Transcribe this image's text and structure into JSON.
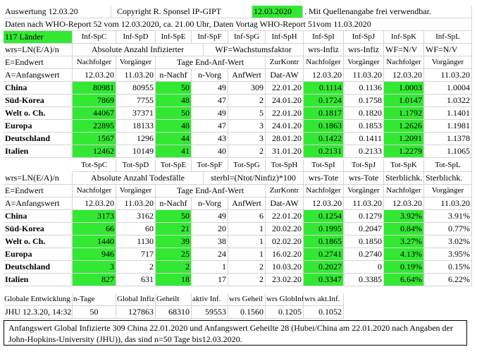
{
  "header": {
    "title": "Auswertung 12.03.20",
    "copyright_prefix": "Copyright R. Sponsel IP-GIPT",
    "copyright_date": "12.03.2020",
    "copyright_suffix": ". Mit Quellenangabe frei verwendbar.",
    "source": "Daten nach WHO-Report 52 vom 12.03.2020, ca. 21.00 Uhr, Daten Vortag WHO-Report 51vom 11.03.2020",
    "countries": "117  Länder"
  },
  "table1": {
    "col_codes": [
      "Inf-SpC",
      "Inf-SpD",
      "Inf-SpE",
      "Inf-SpF",
      "Inf-SpG",
      "Inf-SpH",
      "Inf-SpI",
      "Inf-SpJ",
      "Inf-SpK",
      "Inf-SpL"
    ],
    "formula": "wrs=LN(E/A)/n",
    "title_abs": "Absolute Anzahl Infizierter",
    "title_wf": "WF=Wachstumsfaktor",
    "wrs_infiz": "wrs-Infiz",
    "wrs_infiz2": "wrs-Infiz",
    "wf_label1": "WF=N/V",
    "wf_label2": "WF=N/V",
    "e_label": "E=Endwert",
    "nachfolger": "Nachfolger",
    "vorgaenger": "Vorgänger",
    "tage_label": "Tage End-Anf-Wert",
    "zurkontr": "ZurKontr",
    "nachfolger2": "Nachfolger",
    "vorgaenger2": "Vorgänger",
    "nachfolger3": "Nachfolger",
    "vorgaenger3": "Vorgänger",
    "a_label": "A=Anfangswert",
    "date1": "12.03.20",
    "date2": "11.03.20",
    "n_nachf": "n-Nachf",
    "n_vorg": "n-Vorg",
    "anfwert": "AnfWert",
    "dat_aw": "Dat-AW",
    "date3": "12.03.20",
    "date4": "11.03.20",
    "date5": "12.03.20",
    "date6": "11.03.20",
    "rows": [
      {
        "country": "China",
        "nach": "80981",
        "vor": "80955",
        "nn": "50",
        "nv": "49",
        "aw": "309",
        "dat": "22.01.20",
        "w1": "0.1114",
        "w2": "0.1136",
        "k": "1.0003",
        "l": "1.0004"
      },
      {
        "country": "Süd-Korea",
        "nach": "7869",
        "vor": "7755",
        "nn": "48",
        "nv": "47",
        "aw": "2",
        "dat": "24.01.20",
        "w1": "0.1724",
        "w2": "0.1758",
        "k": "1.0147",
        "l": "1.0322"
      },
      {
        "country": "Welt o. Ch.",
        "nach": "44067",
        "vor": "37371",
        "nn": "50",
        "nv": "49",
        "aw": "5",
        "dat": "22.01.20",
        "w1": "0.1817",
        "w2": "0.1820",
        "k": "1.1792",
        "l": "1.1401"
      },
      {
        "country": "Europa",
        "nach": "22895",
        "vor": "18133",
        "nn": "48",
        "nv": "47",
        "aw": "3",
        "dat": "24.01.20",
        "w1": "0.1863",
        "w2": "0.1853",
        "k": "1.2626",
        "l": "1.1981"
      },
      {
        "country": "Deutschland",
        "nach": "1567",
        "vor": "1296",
        "nn": "44",
        "nv": "43",
        "aw": "3",
        "dat": "28.01.20",
        "w1": "0.1422",
        "w2": "0.1411",
        "k": "1.2091",
        "l": "1.1378"
      },
      {
        "country": "Italien",
        "nach": "12462",
        "vor": "10149",
        "nn": "41",
        "nv": "40",
        "aw": "2",
        "dat": "31.01.20",
        "w1": "0.2131",
        "w2": "0.2133",
        "k": "1.2279",
        "l": "1.1065"
      }
    ]
  },
  "table2": {
    "col_codes": [
      "Tot-SpC",
      "Tot-SpD",
      "Tot-SpE",
      "Tot-SpF",
      "Tot-SpG",
      "Tot-SpH",
      "Tot-SpI",
      "Tot-SpJ",
      "Tot-SpK",
      "Tot-SpL"
    ],
    "formula": "wrs=LN(E/A)/n",
    "title_abs": "Absolute Anzahl Todesfälle",
    "title_sterbl": "sterbl=(Ntot/Ninfiz)*100",
    "wrs_tote": "wrs-Tote",
    "wrs_tote2": "wrs-Tote",
    "sterb1": "Sterblichk.",
    "sterb2": "Sterblichk.",
    "e_label": "E=Endwert",
    "nachfolger": "Nachfolger",
    "vorgaenger": "Vorgänger",
    "tage_label": "Tage End-Anf-Wert",
    "zurkontr": "ZurKontr",
    "nachfolger2": "Nachfolger",
    "vorgaenger2": "Vorgänger",
    "nachfolger3": "Nachfolger",
    "vorgaenger3": "Vorgänger",
    "a_label": "A=Anfangswert",
    "date1": "12.03.20",
    "date2": "11.03.20",
    "n_nachf": "n-Nachf",
    "n_vorg": "n-Vorg",
    "anfwert": "AnfWert",
    "dat_aw": "Dat-AW",
    "date3": "12.03.20",
    "date4": "11.03.20",
    "date5": "12.03.20",
    "date6": "11.03.20",
    "rows": [
      {
        "country": "China",
        "nach": "3173",
        "vor": "3162",
        "nn": "50",
        "nv": "49",
        "aw": "6",
        "dat": "22.01.20",
        "w1": "0.1254",
        "w2": "0.1279",
        "k": "3.92%",
        "l": "3.91%"
      },
      {
        "country": "Süd-Korea",
        "nach": "66",
        "vor": "60",
        "nn": "21",
        "nv": "20",
        "aw": "1",
        "dat": "20.02.20",
        "w1": "0.1995",
        "w2": "0.2047",
        "k": "0.84%",
        "l": "0.77%"
      },
      {
        "country": "Welt o. Ch.",
        "nach": "1440",
        "vor": "1130",
        "nn": "39",
        "nv": "38",
        "aw": "1",
        "dat": "02.02.20",
        "w1": "0.1865",
        "w2": "0.1850",
        "k": "3.27%",
        "l": "3.02%"
      },
      {
        "country": "Europa",
        "nach": "946",
        "vor": "717",
        "nn": "25",
        "nv": "24",
        "aw": "1",
        "dat": "16.02.20",
        "w1": "0.2741",
        "w2": "0.2740",
        "k": "4.13%",
        "l": "3.95%"
      },
      {
        "country": "Deutschland",
        "nach": "3",
        "vor": "2",
        "nn": "2",
        "nv": "1",
        "aw": "2",
        "dat": "10.03.20",
        "w1": "0.2027",
        "w2": "0",
        "k": "0.19%",
        "l": "0.15%"
      },
      {
        "country": "Italien",
        "nach": "827",
        "vor": "631",
        "nn": "18",
        "nv": "17",
        "aw": "2",
        "dat": "23.02.20",
        "w1": "0.3347",
        "w2": "0.3385",
        "k": "6.64%",
        "l": "6.22%"
      }
    ]
  },
  "global": {
    "h1": "Globale Entwicklung",
    "h2": "n-Tage",
    "h3": "Global Infiz",
    "h4": "Geheilt",
    "h5": "aktiv Inf.",
    "h6": "wrs Geheil",
    "h7": "wrs GlobInf",
    "h8": "wrs akt.Inf.",
    "v1": "JHU 12.3.20, 14:32",
    "v2": "50",
    "v3": "127863",
    "v4": "68310",
    "v5": "59553",
    "v6": "0.1560",
    "v7": "0.1205",
    "v8": "0.1052"
  },
  "note": "Anfangswert Global Infizierte 309 China 22.01.2020 und Anfangswert Geheilte 28 (Hubei/China am 22.01.2020 nach Angaben der John-Hopkins-University (JHU)), das sind n=50 Tage bis12.03.2020.",
  "colors": {
    "highlight": "#33e833",
    "grid": "#d4d4d4"
  }
}
